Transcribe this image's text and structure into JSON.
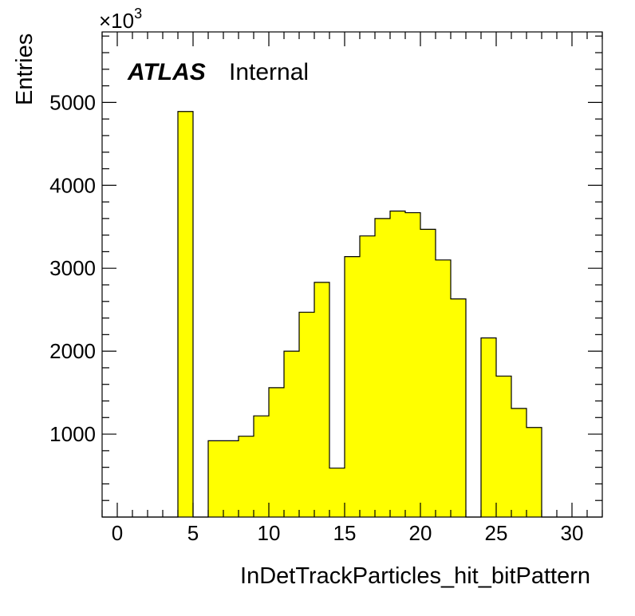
{
  "chart_data": {
    "type": "bar",
    "style": "histogram",
    "xlabel": "InDetTrackParticles_hit_bitPattern",
    "ylabel": "Entries",
    "y_multiplier_label": "×10",
    "y_multiplier_exponent": "3",
    "xlim": [
      -1,
      32
    ],
    "ylim": [
      0,
      5850
    ],
    "x_ticks": [
      0,
      5,
      10,
      15,
      20,
      25,
      30
    ],
    "y_ticks": [
      1000,
      2000,
      3000,
      4000,
      5000
    ],
    "bin_width": 1,
    "bin_edges_start": -1,
    "values": [
      0,
      0,
      0,
      0,
      0,
      4890,
      0,
      920,
      920,
      975,
      1220,
      1560,
      2000,
      2470,
      2830,
      590,
      3140,
      3390,
      3600,
      3690,
      3670,
      3470,
      3100,
      2630,
      0,
      2160,
      1700,
      1310,
      1080,
      0,
      0,
      0,
      0
    ],
    "fill_color": "#ffff00",
    "line_color": "#000000",
    "grid": false,
    "legend": "none",
    "annotation": {
      "bold": "ATLAS",
      "text": "Internal",
      "position": "top-left"
    }
  }
}
